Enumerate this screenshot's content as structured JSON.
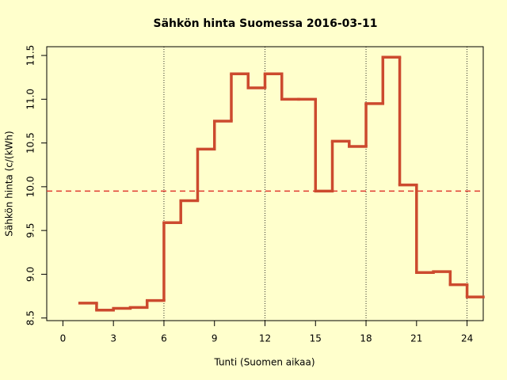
{
  "chart_data": {
    "type": "step",
    "title": "Sähkön hinta Suomessa 2016-03-11",
    "x_label": "Tunti (Suomen aikaa)",
    "y_label": "Sähkön hinta (c/(kWh)",
    "x": [
      1,
      2,
      3,
      4,
      5,
      6,
      7,
      8,
      9,
      10,
      11,
      12,
      13,
      14,
      15,
      16,
      17,
      18,
      19,
      20,
      21,
      22,
      23,
      24
    ],
    "step_width": 1,
    "values": [
      8.67,
      8.59,
      8.61,
      8.62,
      8.7,
      9.59,
      9.84,
      10.43,
      10.75,
      11.29,
      11.13,
      11.29,
      11.0,
      11.0,
      9.95,
      10.52,
      10.46,
      10.95,
      11.48,
      10.02,
      9.02,
      9.03,
      8.88,
      8.74
    ],
    "color": "#cc4a2e",
    "mean_line": 9.95,
    "mean_color": "#e03a30",
    "xlim": [
      -0.96,
      24.96
    ],
    "ylim": [
      8.47,
      11.6
    ],
    "xticks": [
      0,
      3,
      6,
      9,
      12,
      15,
      18,
      21,
      24
    ],
    "yticks": [
      8.5,
      {
        "value": 9,
        "label": "9.0"
      },
      9.5,
      {
        "value": 10,
        "label": "10.0"
      },
      10.5,
      {
        "value": 11,
        "label": "11.0"
      },
      11.5
    ],
    "vgrid": [
      6,
      12,
      18,
      24
    ]
  }
}
